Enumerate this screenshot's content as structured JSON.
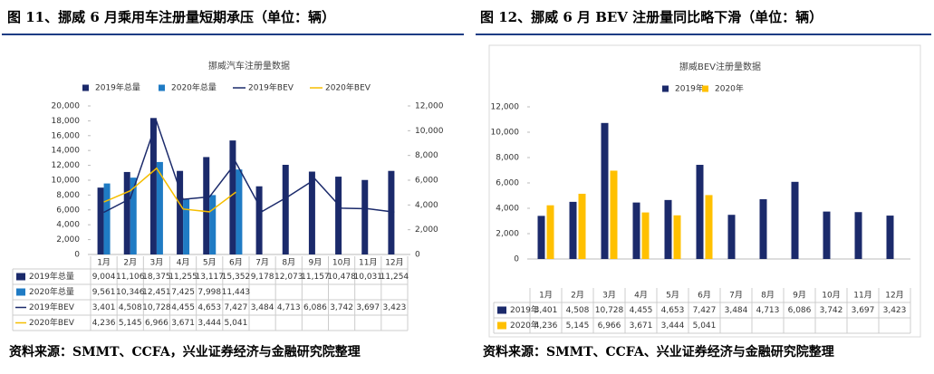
{
  "headers": [
    "图 11、挪威 6 月乘用车注册量短期承压（单位：辆）",
    "图 12、挪威 6 月 BEV 注册量同比略下滑（单位：辆）"
  ],
  "sources": [
    "资料来源：SMMT、CCFA，兴业证券经济与金融研究院整理",
    "资料来源：SMMT、CCFA、兴业证券经济与金融研究院整理"
  ],
  "chart_data": [
    {
      "type": "combo",
      "title": "挪威汽车注册量数据",
      "categories": [
        "1月",
        "2月",
        "3月",
        "4月",
        "5月",
        "6月",
        "7月",
        "8月",
        "9月",
        "10月",
        "11月",
        "12月"
      ],
      "series": [
        {
          "name": "2019年总量",
          "color": "#1b2a6b",
          "values": [
            9004,
            11106,
            18375,
            11255,
            13117,
            15352,
            9178,
            12073,
            11157,
            10478,
            10031,
            11254
          ],
          "value_labels": [
            "9,004",
            "11,106",
            "18,375",
            "11,255",
            "13,117",
            "15,352",
            "9,178",
            "12,073",
            "11,157",
            "10,478",
            "10,031",
            "11,254"
          ]
        },
        {
          "name": "2020年总量",
          "color": "#1f7bc4",
          "values": [
            9561,
            10346,
            12451,
            7425,
            7998,
            11443,
            null,
            null,
            null,
            null,
            null,
            null
          ],
          "value_labels": [
            "9,561",
            "10,346",
            "12,451",
            "7,425",
            "7,998",
            "11,443",
            null,
            null,
            null,
            null,
            null,
            null
          ]
        },
        {
          "name": "2019年BEV",
          "color": "#1b2a6b",
          "axis": "y2",
          "values": [
            3401,
            4508,
            10728,
            4455,
            4653,
            7427,
            3484,
            4713,
            6086,
            3742,
            3697,
            3423
          ],
          "value_labels": [
            "3,401",
            "4,508",
            "10,728",
            "4,455",
            "4,653",
            "7,427",
            "3,484",
            "4,713",
            "6,086",
            "3,742",
            "3,697",
            "3,423"
          ]
        },
        {
          "name": "2020年BEV",
          "color": "#f5be00",
          "axis": "y2",
          "values": [
            4236,
            5145,
            6966,
            3671,
            3444,
            5041,
            null,
            null,
            null,
            null,
            null,
            null
          ],
          "value_labels": [
            "4,236",
            "5,145",
            "6,966",
            "3,671",
            "3,444",
            "5,041",
            null,
            null,
            null,
            null,
            null,
            null
          ]
        }
      ],
      "ylim": [
        0,
        20000
      ],
      "yticks": [
        0,
        {
          "value": 2000,
          "label": "2,000"
        },
        {
          "value": 4000,
          "label": "4,000"
        },
        {
          "value": 6000,
          "label": "6,000"
        },
        {
          "value": 8000,
          "label": "8,000"
        },
        {
          "value": 10000,
          "label": "10,000"
        },
        {
          "value": 12000,
          "label": "12,000"
        },
        {
          "value": 14000,
          "label": "14,000"
        },
        {
          "value": 16000,
          "label": "16,000"
        },
        {
          "value": 18000,
          "label": "18,000"
        },
        {
          "value": 20000,
          "label": "20,000"
        }
      ],
      "y2lim": [
        0,
        12000
      ],
      "y2ticks": [
        0,
        {
          "value": 2000,
          "label": "2,000"
        },
        {
          "value": 4000,
          "label": "4,000"
        },
        {
          "value": 6000,
          "label": "6,000"
        },
        {
          "value": 8000,
          "label": "8,000"
        },
        {
          "value": 10000,
          "label": "10,000"
        },
        {
          "value": 12000,
          "label": "12,000"
        }
      ],
      "grid": false
    },
    {
      "type": "bar",
      "title": "挪威BEV注册量数据",
      "categories": [
        "1月",
        "2月",
        "3月",
        "4月",
        "5月",
        "6月",
        "7月",
        "8月",
        "9月",
        "10月",
        "11月",
        "12月"
      ],
      "series": [
        {
          "name": "2019年",
          "color": "#1b2a6b",
          "values": [
            3401,
            4508,
            10728,
            4455,
            4653,
            7427,
            3484,
            4713,
            6086,
            3742,
            3697,
            3423
          ],
          "value_labels": [
            "3,401",
            "4,508",
            "10,728",
            "4,455",
            "4,653",
            "7,427",
            "3,484",
            "4,713",
            "6,086",
            "3,742",
            "3,697",
            "3,423"
          ]
        },
        {
          "name": "2020年",
          "color": "#ffc000",
          "values": [
            4236,
            5145,
            6966,
            3671,
            3444,
            5041,
            null,
            null,
            null,
            null,
            null,
            null
          ],
          "value_labels": [
            "4,236",
            "5,145",
            "6,966",
            "3,671",
            "3,444",
            "5,041",
            null,
            null,
            null,
            null,
            null,
            null
          ]
        }
      ],
      "ylim": [
        0,
        12000
      ],
      "yticks": [
        0,
        {
          "value": 2000,
          "label": "2,000"
        },
        {
          "value": 4000,
          "label": "4,000"
        },
        {
          "value": 6000,
          "label": "6,000"
        },
        {
          "value": 8000,
          "label": "8,000"
        },
        {
          "value": 10000,
          "label": "10,000"
        },
        {
          "value": 12000,
          "label": "12,000"
        }
      ],
      "grid": false
    }
  ]
}
